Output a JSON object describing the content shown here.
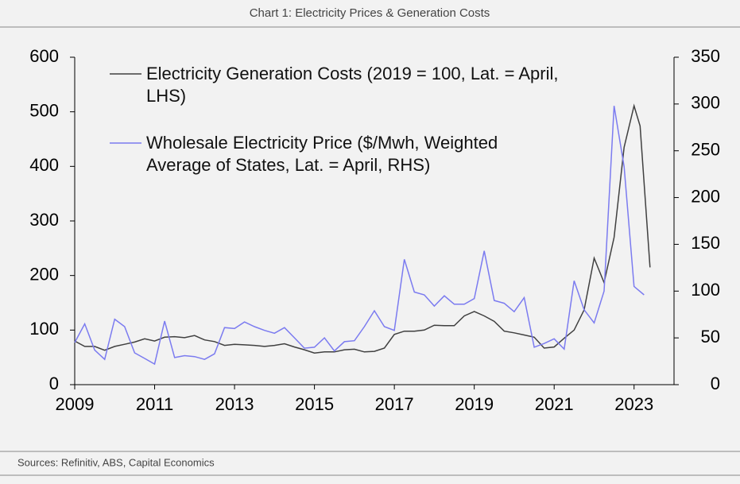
{
  "chart_data": {
    "type": "line",
    "title": "Chart 1: Electricity Prices & Generation Costs",
    "source": "Sources: Refinitiv, ABS, Capital Economics",
    "xlim": [
      2009,
      2024
    ],
    "xticks": [
      2009,
      2011,
      2013,
      2015,
      2017,
      2019,
      2021,
      2023
    ],
    "ylim": [
      0,
      600
    ],
    "yticks": [
      0,
      100,
      200,
      300,
      400,
      500,
      600
    ],
    "y2lim": [
      0,
      350
    ],
    "y2ticks": [
      0,
      50,
      100,
      150,
      200,
      250,
      300,
      350
    ],
    "series": [
      {
        "name": "Electricity Generation Costs (2019 = 100, Lat. = April, LHS)",
        "color": "#404040",
        "axis": "y",
        "x": [
          2009,
          2009.25,
          2009.5,
          2009.75,
          2010,
          2010.25,
          2010.5,
          2010.75,
          2011,
          2011.25,
          2011.5,
          2011.75,
          2012,
          2012.25,
          2012.5,
          2012.75,
          2013,
          2013.25,
          2013.5,
          2013.75,
          2014,
          2014.25,
          2014.5,
          2014.75,
          2015,
          2015.25,
          2015.5,
          2015.75,
          2016,
          2016.25,
          2016.5,
          2016.75,
          2017,
          2017.25,
          2017.5,
          2017.75,
          2018,
          2018.25,
          2018.5,
          2018.75,
          2019,
          2019.25,
          2019.5,
          2019.75,
          2020,
          2020.25,
          2020.5,
          2020.75,
          2021,
          2021.25,
          2021.5,
          2021.75,
          2022,
          2022.25,
          2022.5,
          2022.75,
          2023,
          2023.15,
          2023.4
        ],
        "values": [
          80,
          70,
          70,
          63,
          70,
          74,
          78,
          84,
          80,
          87,
          88,
          86,
          90,
          82,
          79,
          72,
          74,
          73,
          72,
          70,
          72,
          75,
          69,
          64,
          58,
          60,
          60,
          64,
          65,
          60,
          61,
          67,
          92,
          98,
          98,
          100,
          109,
          108,
          108,
          126,
          134,
          126,
          116,
          98,
          95,
          91,
          87,
          67,
          69,
          85,
          100,
          137,
          232,
          187,
          270,
          435,
          511,
          474,
          215
        ],
        "extra": null
      },
      {
        "name": "Wholesale Electricity Price ($/Mwh, Weighted Average of States, Lat. = April, RHS)",
        "color": "#7b7bf0",
        "axis": "y2",
        "x": [
          2009,
          2009.25,
          2009.5,
          2009.75,
          2010,
          2010.25,
          2010.5,
          2010.75,
          2011,
          2011.25,
          2011.5,
          2011.75,
          2012,
          2012.25,
          2012.5,
          2012.75,
          2013,
          2013.25,
          2013.5,
          2013.75,
          2014,
          2014.25,
          2014.5,
          2014.75,
          2015,
          2015.25,
          2015.5,
          2015.75,
          2016,
          2016.25,
          2016.5,
          2016.75,
          2017,
          2017.25,
          2017.5,
          2017.75,
          2018,
          2018.25,
          2018.5,
          2018.75,
          2019,
          2019.25,
          2019.5,
          2019.75,
          2020,
          2020.25,
          2020.5,
          2020.75,
          2021,
          2021.25,
          2021.5,
          2021.75,
          2022,
          2022.25,
          2022.5,
          2022.75,
          2023,
          2023.25
        ],
        "values": [
          45,
          65,
          37,
          27,
          70,
          62,
          34,
          28,
          22,
          68,
          29,
          31,
          30,
          27,
          33,
          61,
          60,
          67,
          62,
          58,
          55,
          61,
          50,
          39,
          40,
          50,
          36,
          46,
          47,
          62,
          79,
          62,
          58,
          134,
          99,
          96,
          84,
          95,
          86,
          86,
          92,
          143,
          90,
          87,
          78,
          93,
          40,
          44,
          49,
          38,
          111,
          80,
          66,
          100,
          298,
          233,
          105,
          96
        ]
      }
    ]
  }
}
